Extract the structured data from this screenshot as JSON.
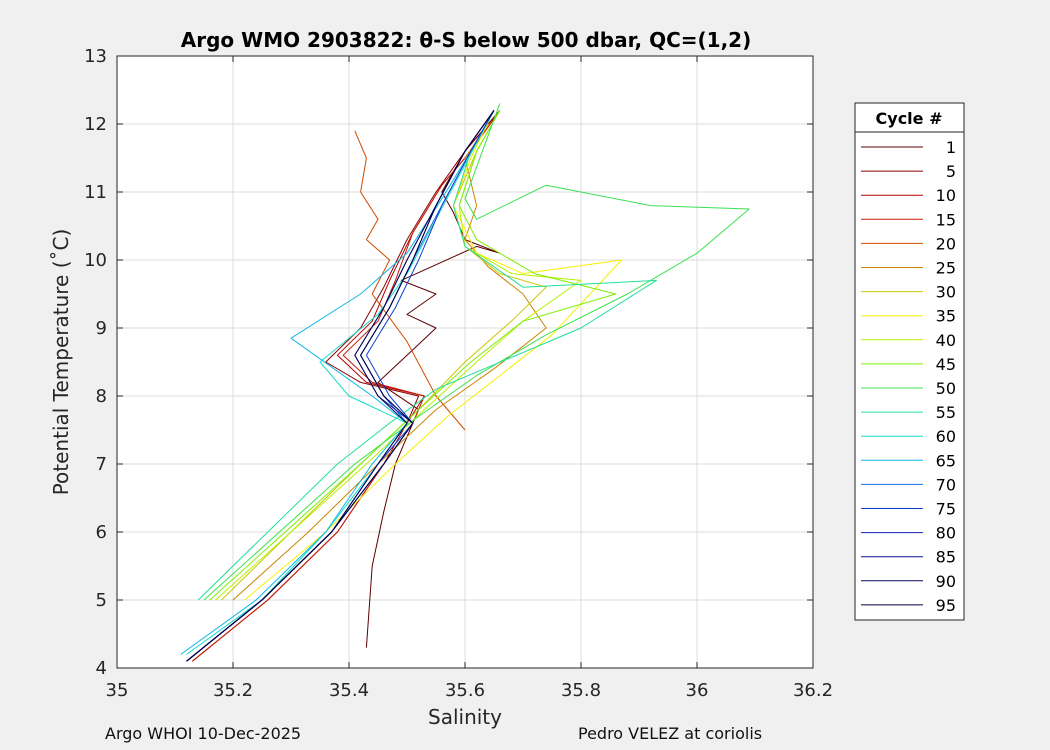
{
  "chart_data": {
    "type": "line",
    "title": "Argo WMO 2903822: θ-S below 500 dbar,  QC=(1,2)",
    "xlabel": "Salinity",
    "ylabel": "Potential Temperature (˚C)",
    "xlim": [
      35,
      36.2
    ],
    "ylim": [
      4,
      13
    ],
    "xticks": [
      "35",
      "35.2",
      "35.4",
      "35.6",
      "35.8",
      "36",
      "36.2"
    ],
    "yticks": [
      "4",
      "5",
      "6",
      "7",
      "8",
      "9",
      "10",
      "11",
      "12",
      "13"
    ],
    "grid": true,
    "legend": {
      "title": "Cycle #",
      "placement": "outside-right",
      "entries": [
        "1",
        "5",
        "10",
        "15",
        "20",
        "25",
        "30",
        "35",
        "40",
        "45",
        "50",
        "55",
        "60",
        "65",
        "70",
        "75",
        "80",
        "85",
        "90",
        "95"
      ]
    },
    "colors": [
      "#5c0000",
      "#8a0000",
      "#b30000",
      "#c41a00",
      "#d14b00",
      "#c98500",
      "#c8c800",
      "#f5f000",
      "#b8f000",
      "#7cf000",
      "#3ce050",
      "#20e09a",
      "#14dcc8",
      "#10b8e8",
      "#1070e0",
      "#1040d0",
      "#0d1fb0",
      "#0a1090",
      "#06065c",
      "#000040"
    ],
    "series": [
      {
        "name": "1",
        "x": [
          35.43,
          35.44,
          35.46,
          35.48,
          35.52,
          35.45,
          35.5,
          35.55,
          35.5,
          35.55,
          35.49,
          35.62,
          35.66,
          35.6,
          35.58,
          35.56,
          35.58,
          35.6,
          35.63,
          35.66
        ],
        "y": [
          4.3,
          5.5,
          6.3,
          7.0,
          7.8,
          8.2,
          8.6,
          9.0,
          9.2,
          9.5,
          9.7,
          10.2,
          10.1,
          10.3,
          10.7,
          11.0,
          11.3,
          11.6,
          11.9,
          12.2
        ]
      },
      {
        "name": "5",
        "x": [
          35.12,
          35.25,
          35.37,
          35.45,
          35.5,
          35.52,
          35.42,
          35.36,
          35.42,
          35.46,
          35.5,
          35.55,
          35.6,
          35.66
        ],
        "y": [
          4.1,
          5.0,
          6.0,
          7.0,
          7.6,
          8.0,
          8.2,
          8.5,
          9.0,
          9.6,
          10.3,
          11.0,
          11.6,
          12.2
        ]
      },
      {
        "name": "10",
        "x": [
          35.13,
          35.26,
          35.38,
          35.46,
          35.5,
          35.53,
          35.43,
          35.38,
          35.44,
          35.47,
          35.51,
          35.56,
          35.61,
          35.66
        ],
        "y": [
          4.1,
          5.0,
          6.0,
          7.0,
          7.6,
          8.0,
          8.2,
          8.6,
          9.1,
          9.7,
          10.4,
          11.1,
          11.6,
          12.2
        ]
      },
      {
        "name": "15",
        "x": [
          35.13,
          35.26,
          35.38,
          35.46,
          35.51,
          35.53,
          35.44,
          35.39,
          35.45,
          35.48,
          35.51,
          35.56,
          35.61,
          35.66
        ],
        "y": [
          4.1,
          5.0,
          6.0,
          7.0,
          7.6,
          8.0,
          8.2,
          8.6,
          9.1,
          9.7,
          10.4,
          11.1,
          11.6,
          12.2
        ]
      },
      {
        "name": "20",
        "x": [
          35.41,
          35.43,
          35.42,
          35.45,
          35.43,
          35.47,
          35.44,
          35.5,
          35.55,
          35.6
        ],
        "y": [
          11.9,
          11.5,
          11.0,
          10.6,
          10.3,
          10.0,
          9.5,
          8.8,
          8.0,
          7.5
        ]
      },
      {
        "name": "25",
        "x": [
          35.2,
          35.33,
          35.45,
          35.55,
          35.65,
          35.74,
          35.7,
          35.64,
          35.6,
          35.62,
          35.6,
          35.64
        ],
        "y": [
          5.0,
          6.0,
          7.0,
          7.8,
          8.4,
          9.0,
          9.5,
          9.9,
          10.3,
          10.8,
          11.5,
          12.0
        ]
      },
      {
        "name": "30",
        "x": [
          35.18,
          35.3,
          35.42,
          35.52,
          35.6,
          35.68,
          35.74,
          35.66,
          35.6,
          35.58,
          35.62,
          35.66
        ],
        "y": [
          5.0,
          6.0,
          7.0,
          7.8,
          8.5,
          9.1,
          9.6,
          9.8,
          10.2,
          10.8,
          11.6,
          12.2
        ]
      },
      {
        "name": "35",
        "x": [
          35.22,
          35.36,
          35.48,
          35.57,
          35.66,
          35.75,
          35.87,
          35.7,
          35.62,
          35.58,
          35.61,
          35.65
        ],
        "y": [
          5.0,
          6.0,
          7.0,
          7.7,
          8.3,
          8.9,
          10.0,
          9.8,
          10.1,
          10.8,
          11.5,
          12.2
        ]
      },
      {
        "name": "40",
        "x": [
          35.17,
          35.3,
          35.43,
          35.53,
          35.62,
          35.7,
          35.8,
          35.68,
          35.6,
          35.59,
          35.62,
          35.66
        ],
        "y": [
          5.0,
          6.0,
          7.0,
          7.8,
          8.5,
          9.1,
          9.7,
          9.8,
          10.2,
          10.8,
          11.6,
          12.2
        ]
      },
      {
        "name": "45",
        "x": [
          35.16,
          35.29,
          35.42,
          35.52,
          35.61,
          35.7,
          35.86,
          35.72,
          35.62,
          35.59,
          35.62,
          35.66
        ],
        "y": [
          5.0,
          6.0,
          7.0,
          7.8,
          8.5,
          9.1,
          9.5,
          9.8,
          10.3,
          10.8,
          11.6,
          12.2
        ]
      },
      {
        "name": "50",
        "x": [
          35.15,
          35.28,
          35.41,
          35.52,
          35.62,
          35.74,
          35.88,
          36.0,
          36.09,
          35.92,
          35.74,
          35.62,
          35.6,
          35.63,
          35.66
        ],
        "y": [
          5.0,
          6.0,
          7.0,
          7.7,
          8.3,
          8.9,
          9.5,
          10.1,
          10.75,
          10.8,
          11.1,
          10.6,
          10.9,
          11.6,
          12.3
        ]
      },
      {
        "name": "55",
        "x": [
          35.14,
          35.26,
          35.38,
          35.47,
          35.55,
          35.8,
          35.93,
          35.7,
          35.6,
          35.58,
          35.61,
          35.65
        ],
        "y": [
          5.0,
          6.0,
          7.0,
          7.6,
          8.1,
          9.0,
          9.7,
          9.6,
          10.2,
          10.8,
          11.6,
          12.2
        ]
      },
      {
        "name": "60",
        "x": [
          35.12,
          35.25,
          35.36,
          35.45,
          35.5,
          35.4,
          35.35,
          35.45,
          35.5,
          35.55,
          35.6,
          35.65
        ],
        "y": [
          4.2,
          5.0,
          6.0,
          7.0,
          7.6,
          8.0,
          8.5,
          9.2,
          9.8,
          10.6,
          11.4,
          12.2
        ]
      },
      {
        "name": "65",
        "x": [
          35.11,
          35.24,
          35.36,
          35.44,
          35.5,
          35.44,
          35.3,
          35.42,
          35.5,
          35.56,
          35.61,
          35.65
        ],
        "y": [
          4.2,
          5.0,
          6.0,
          7.0,
          7.6,
          8.0,
          8.85,
          9.5,
          10.1,
          10.9,
          11.6,
          12.2
        ]
      },
      {
        "name": "70",
        "x": [
          35.12,
          35.25,
          35.37,
          35.45,
          35.5,
          35.46,
          35.42,
          35.47,
          35.51,
          35.56,
          35.61,
          35.65
        ],
        "y": [
          4.1,
          5.0,
          6.0,
          7.0,
          7.6,
          8.0,
          8.6,
          9.3,
          10.0,
          10.8,
          11.6,
          12.2
        ]
      },
      {
        "name": "75",
        "x": [
          35.12,
          35.25,
          35.37,
          35.45,
          35.51,
          35.47,
          35.43,
          35.48,
          35.52,
          35.56,
          35.61,
          35.65
        ],
        "y": [
          4.1,
          5.0,
          6.0,
          7.0,
          7.6,
          8.0,
          8.6,
          9.3,
          10.0,
          10.8,
          11.6,
          12.2
        ]
      },
      {
        "name": "80",
        "x": [
          35.12,
          35.25,
          35.37,
          35.46,
          35.51,
          35.45,
          35.41,
          35.46,
          35.5,
          35.55,
          35.6,
          35.65
        ],
        "y": [
          4.1,
          5.0,
          6.0,
          7.0,
          7.6,
          8.0,
          8.6,
          9.3,
          10.0,
          10.8,
          11.6,
          12.2
        ]
      },
      {
        "name": "85",
        "x": [
          35.12,
          35.25,
          35.37,
          35.46,
          35.51,
          35.46,
          35.42,
          35.47,
          35.51,
          35.55,
          35.6,
          35.65
        ],
        "y": [
          4.1,
          5.0,
          6.0,
          7.0,
          7.6,
          8.0,
          8.6,
          9.3,
          10.0,
          10.8,
          11.6,
          12.2
        ]
      },
      {
        "name": "90",
        "x": [
          35.12,
          35.25,
          35.37,
          35.45,
          35.5,
          35.45,
          35.41,
          35.46,
          35.5,
          35.55,
          35.6,
          35.65
        ],
        "y": [
          4.1,
          5.0,
          6.0,
          7.0,
          7.6,
          8.0,
          8.6,
          9.3,
          10.0,
          10.8,
          11.6,
          12.2
        ]
      },
      {
        "name": "95",
        "x": [
          35.12,
          35.25,
          35.37,
          35.46,
          35.51,
          35.46,
          35.42,
          35.47,
          35.51,
          35.55,
          35.6,
          35.65
        ],
        "y": [
          4.1,
          5.0,
          6.0,
          7.0,
          7.6,
          8.0,
          8.6,
          9.3,
          10.0,
          10.8,
          11.6,
          12.2
        ]
      }
    ]
  },
  "footer": {
    "left": "Argo WHOI 10-Dec-2025",
    "right": "Pedro VELEZ at coriolis"
  }
}
